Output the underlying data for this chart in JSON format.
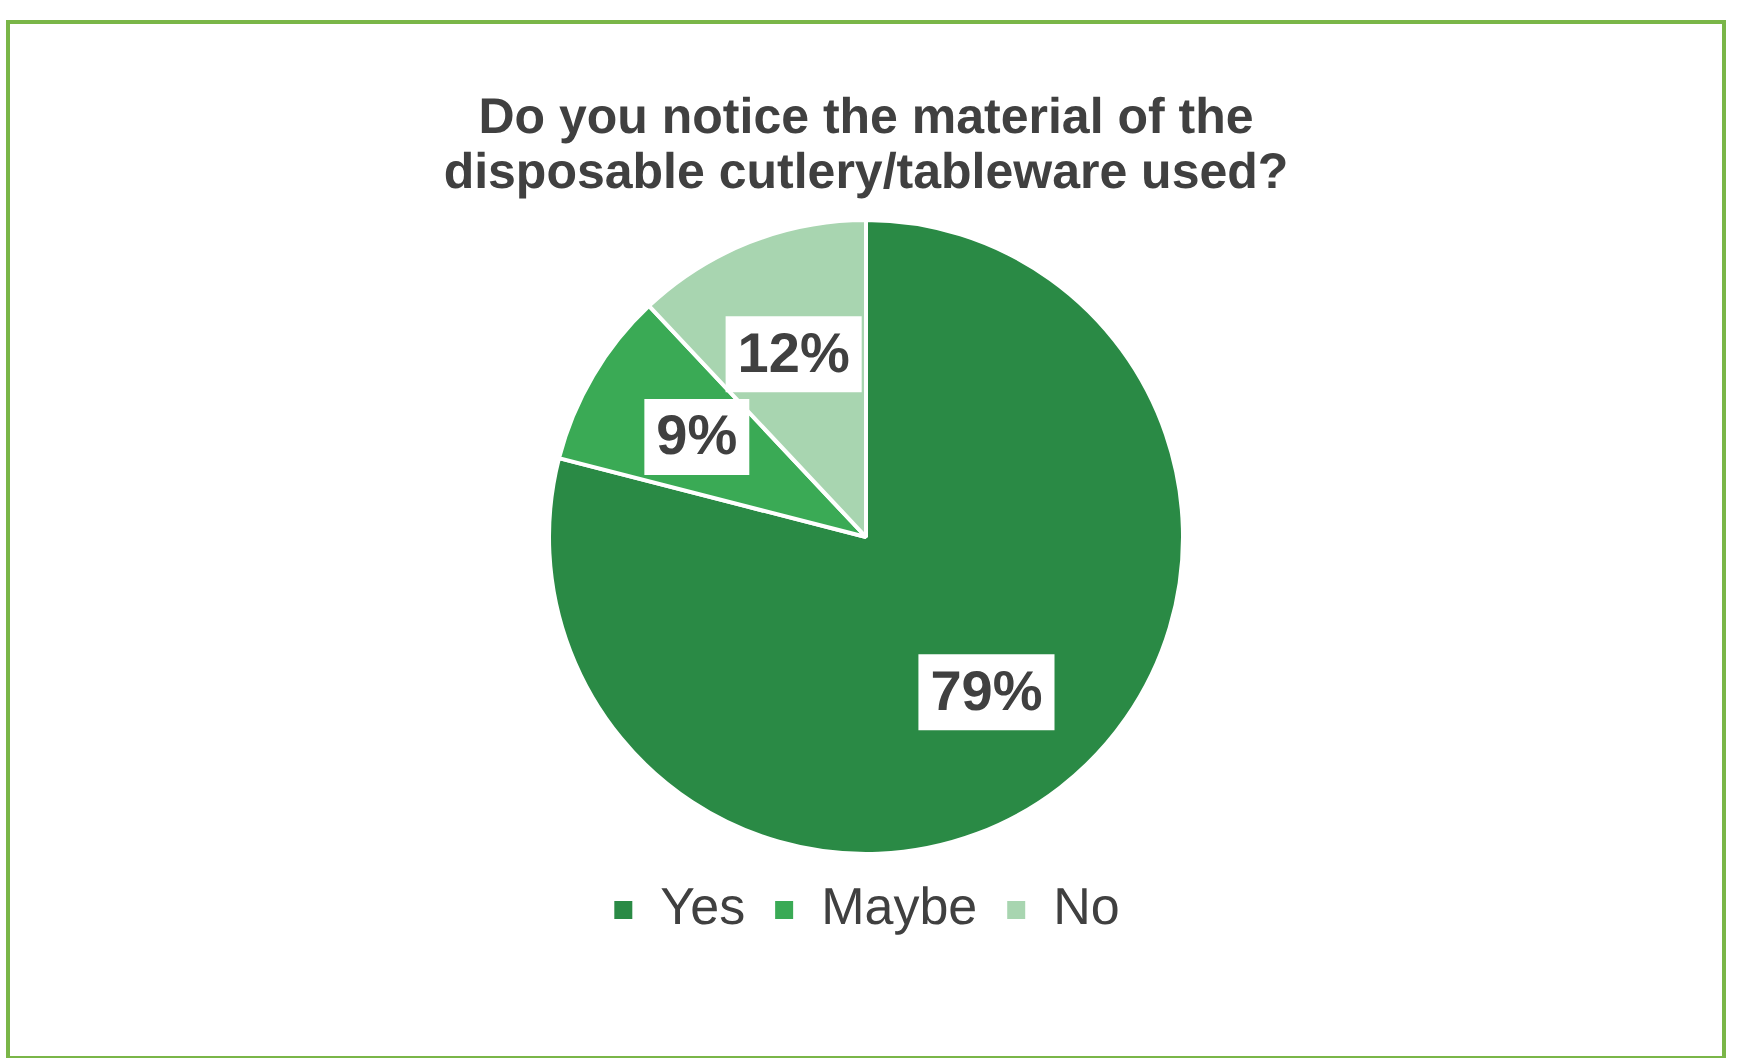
{
  "chart_data": {
    "type": "pie",
    "title": "Do you notice the material of the disposable cutlery/tableware used?",
    "categories": [
      "Yes",
      "Maybe",
      "No"
    ],
    "values": [
      79,
      9,
      12
    ],
    "colors": [
      "#2a8a45",
      "#3aaa55",
      "#a8d5b0"
    ],
    "value_labels": [
      "79%",
      "9%",
      "12%"
    ],
    "legend": "bottom"
  }
}
